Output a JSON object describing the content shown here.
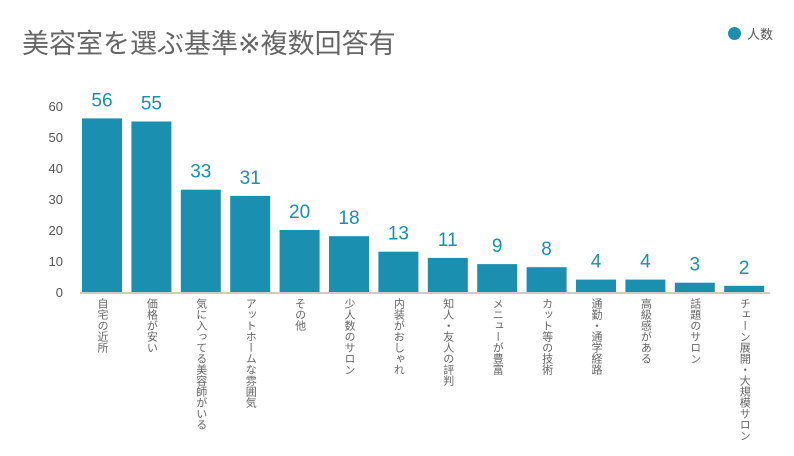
{
  "chart_data": {
    "type": "bar",
    "title": "美容室を選ぶ基準※複数回答有",
    "categories": [
      "自宅の近所",
      "価格が安い",
      "気に入ってる美容師がいる",
      "アットホームな雰囲気",
      "その他",
      "少人数のサロン",
      "内装がおしゃれ",
      "知人・友人の評判",
      "メニューが豊富",
      "カット等の技術",
      "通勤・通学経路",
      "高級感がある",
      "話題のサロン",
      "チェーン展開・大規模サロン"
    ],
    "series": [
      {
        "name": "人数",
        "values": [
          56,
          55,
          33,
          31,
          20,
          18,
          13,
          11,
          9,
          8,
          4,
          4,
          3,
          2
        ]
      }
    ],
    "ylim": [
      0,
      60
    ],
    "yticks": [
      0,
      10,
      20,
      30,
      40,
      50,
      60
    ],
    "grid": false,
    "legend_position": "top-right",
    "data_labels": true,
    "colors": {
      "bar": "#1a8fb0",
      "data_label": "#1a8fb0",
      "axis_text": "#555555"
    }
  }
}
